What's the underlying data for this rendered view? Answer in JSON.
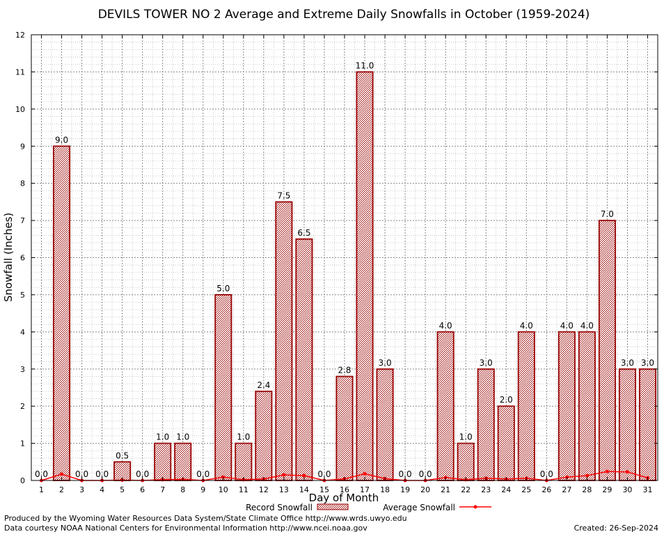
{
  "chart_data": {
    "type": "bar",
    "title": "DEVILS TOWER NO 2 Average and Extreme Daily Snowfalls in October (1959-2024)",
    "xlabel": "Day of Month",
    "ylabel": "Snowfall (Inches)",
    "ylim": [
      0,
      12
    ],
    "yticks": [
      "0",
      "1",
      "2",
      "3",
      "4",
      "5",
      "6",
      "7",
      "8",
      "9",
      "10",
      "11",
      "12"
    ],
    "categories": [
      "1",
      "2",
      "3",
      "4",
      "5",
      "6",
      "7",
      "8",
      "9",
      "10",
      "11",
      "12",
      "13",
      "14",
      "15",
      "16",
      "17",
      "18",
      "19",
      "20",
      "21",
      "22",
      "23",
      "24",
      "25",
      "26",
      "27",
      "28",
      "29",
      "30",
      "31"
    ],
    "grid": true,
    "legend_position": "bottom",
    "series": [
      {
        "name": "Record Snowfall",
        "type": "bar",
        "color": "#990000",
        "values": [
          0.0,
          9.0,
          0.0,
          0.0,
          0.5,
          0.0,
          1.0,
          1.0,
          0.0,
          5.0,
          1.0,
          2.4,
          7.5,
          6.5,
          0.0,
          2.8,
          11.0,
          3.0,
          0.0,
          0.0,
          4.0,
          1.0,
          3.0,
          2.0,
          4.0,
          0.0,
          4.0,
          4.0,
          7.0,
          3.0,
          3.0
        ],
        "labels": [
          "0.0",
          "9.0",
          "0.0",
          "0.0",
          "0.5",
          "0.0",
          "1.0",
          "1.0",
          "0.0",
          "5.0",
          "1.0",
          "2.4",
          "7.5",
          "6.5",
          "0.0",
          "2.8",
          "11.0",
          "3.0",
          "0.0",
          "0.0",
          "4.0",
          "1.0",
          "3.0",
          "2.0",
          "4.0",
          "0.0",
          "4.0",
          "4.0",
          "7.0",
          "3.0",
          "3.0"
        ]
      },
      {
        "name": "Average Snowfall",
        "type": "line",
        "color": "#ff0000",
        "values": [
          0.0,
          0.17,
          0.0,
          0.0,
          0.01,
          0.0,
          0.02,
          0.03,
          0.0,
          0.09,
          0.02,
          0.04,
          0.15,
          0.13,
          0.0,
          0.04,
          0.18,
          0.05,
          0.0,
          0.0,
          0.08,
          0.02,
          0.06,
          0.04,
          0.06,
          0.0,
          0.09,
          0.13,
          0.24,
          0.23,
          0.07
        ]
      }
    ]
  },
  "footer": {
    "line1": "Produced by the Wyoming Water Resources Data System/State Climate Office http://www.wrds.uwyo.edu",
    "line2": "Data courtesy NOAA National Centers for Environmental Information http://www.ncei.noaa.gov",
    "created": "Created:  26-Sep-2024"
  }
}
